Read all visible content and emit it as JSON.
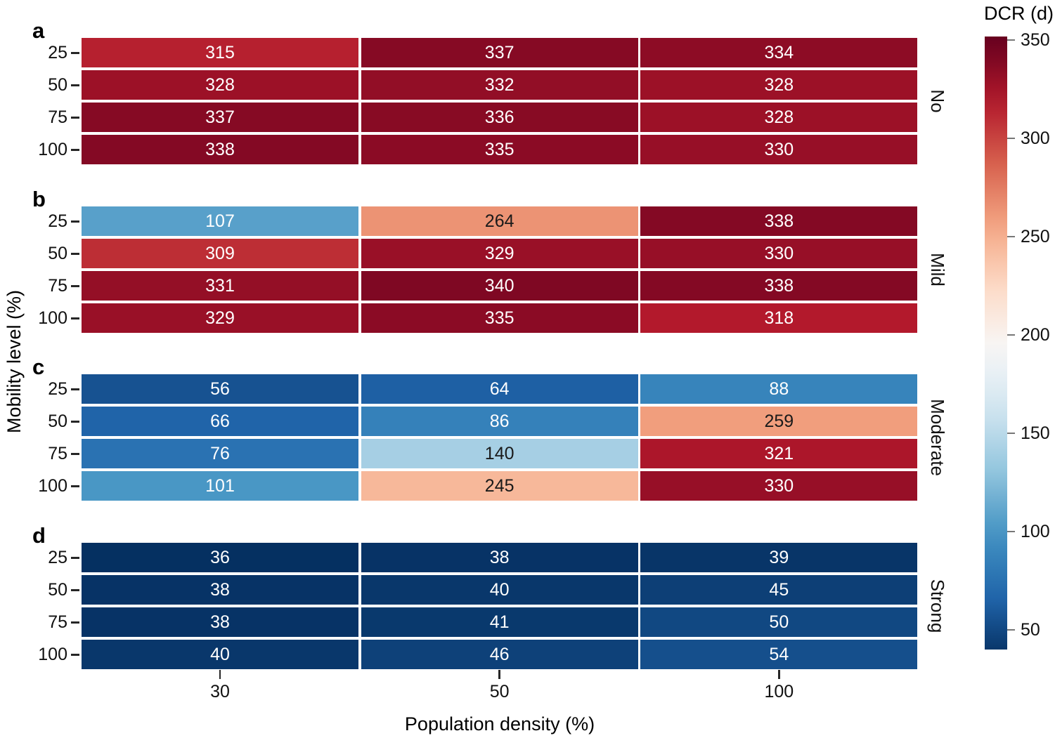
{
  "figure": {
    "xlabel": "Population density (%)",
    "ylabel": "Mobility level (%)",
    "colorbar_title": "DCR (d)"
  },
  "chart_data": {
    "type": "heatmap",
    "title": "",
    "xlabel": "Population density (%)",
    "ylabel": "Mobility level (%)",
    "x_categories": [
      "30",
      "50",
      "100"
    ],
    "y_categories": [
      "25",
      "50",
      "75",
      "100"
    ],
    "colormap": "RdBu_r",
    "vmin": 36,
    "vmax": 350,
    "grid": false,
    "colorbar": {
      "title": "DCR (d)",
      "ticks": [
        350,
        300,
        250,
        200,
        150,
        100,
        50
      ],
      "position": "right"
    },
    "panels": [
      {
        "letter": "a",
        "side_label": "No",
        "values": [
          [
            315,
            337,
            334
          ],
          [
            328,
            332,
            328
          ],
          [
            337,
            336,
            328
          ],
          [
            338,
            335,
            330
          ]
        ]
      },
      {
        "letter": "b",
        "side_label": "Mild",
        "values": [
          [
            107,
            264,
            338
          ],
          [
            309,
            329,
            330
          ],
          [
            331,
            340,
            338
          ],
          [
            329,
            335,
            318
          ]
        ]
      },
      {
        "letter": "c",
        "side_label": "Moderate",
        "values": [
          [
            56,
            64,
            88
          ],
          [
            66,
            86,
            259
          ],
          [
            76,
            140,
            321
          ],
          [
            101,
            245,
            330
          ]
        ]
      },
      {
        "letter": "d",
        "side_label": "Strong",
        "values": [
          [
            36,
            38,
            39
          ],
          [
            38,
            40,
            45
          ],
          [
            38,
            41,
            50
          ],
          [
            40,
            46,
            54
          ]
        ]
      }
    ]
  },
  "colors": {
    "rdbu_r_stops": [
      "#053061",
      "#2166ac",
      "#4393c3",
      "#92c5de",
      "#d1e5f0",
      "#f7f7f7",
      "#fddbc7",
      "#f4a582",
      "#d6604d",
      "#b2182b",
      "#67001f"
    ],
    "annotation_light": "#ffffff",
    "annotation_dark": "#1a1a1a",
    "axis_tick_color": "#262626",
    "colorbar_tick_color": "#777777",
    "background": "#ffffff"
  }
}
